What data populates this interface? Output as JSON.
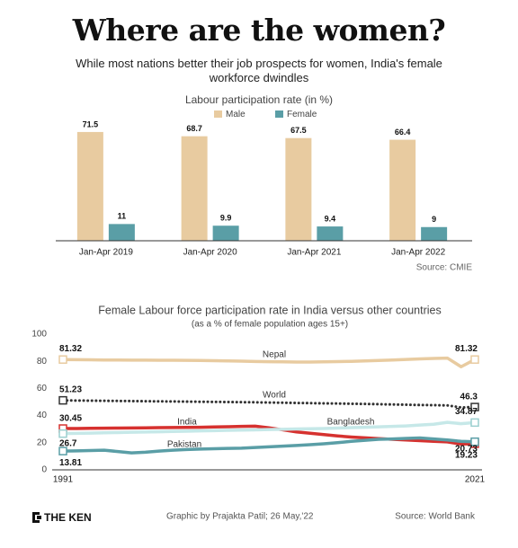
{
  "header": {
    "title": "Where are the women?",
    "subtitle": "While most nations better their job prospects for women, India's female workforce dwindles"
  },
  "chart_data": [
    {
      "type": "bar",
      "title": "Labour participation rate (in %)",
      "categories": [
        "Jan-Apr 2019",
        "Jan-Apr 2020",
        "Jan-Apr 2021",
        "Jan-Apr 2022"
      ],
      "series": [
        {
          "name": "Male",
          "color": "#e8cba0",
          "values": [
            71.5,
            68.7,
            67.5,
            66.4
          ]
        },
        {
          "name": "Female",
          "color": "#5a9ea6",
          "values": [
            11,
            9.9,
            9.4,
            9
          ]
        }
      ],
      "ylim": [
        0,
        75
      ],
      "source": "Source: CMIE"
    },
    {
      "type": "line",
      "title": "Female Labour force participation rate in India versus other countries",
      "subtitle": "(as a % of female population ages 15+)",
      "x": [
        1991,
        1992,
        1993,
        1994,
        1995,
        1996,
        1997,
        1998,
        1999,
        2000,
        2001,
        2002,
        2003,
        2004,
        2005,
        2006,
        2007,
        2008,
        2009,
        2010,
        2011,
        2012,
        2013,
        2014,
        2015,
        2016,
        2017,
        2018,
        2019,
        2020,
        2021
      ],
      "xlim": [
        1991,
        2021
      ],
      "xticks": [
        1991,
        2021
      ],
      "ylim": [
        0,
        100
      ],
      "yticks": [
        0,
        20,
        40,
        60,
        80,
        100
      ],
      "series": [
        {
          "name": "Nepal",
          "color": "#e8cba0",
          "line_style": "solid",
          "values": [
            81.32,
            81.2,
            81.1,
            81.0,
            81.0,
            80.9,
            80.9,
            80.8,
            80.8,
            80.7,
            80.6,
            80.5,
            80.3,
            80.1,
            79.9,
            79.7,
            79.6,
            79.5,
            79.5,
            79.6,
            79.8,
            80.0,
            80.3,
            80.6,
            81.0,
            81.4,
            81.8,
            82.1,
            82.4,
            76.0,
            81.32
          ]
        },
        {
          "name": "World",
          "color": "#333333",
          "line_style": "dotted",
          "values": [
            51.23,
            51.1,
            51.0,
            50.9,
            50.8,
            50.7,
            50.6,
            50.5,
            50.4,
            50.3,
            50.2,
            50.1,
            50.0,
            49.9,
            49.8,
            49.6,
            49.5,
            49.3,
            49.2,
            49.0,
            48.9,
            48.7,
            48.6,
            48.4,
            48.2,
            48.0,
            47.8,
            47.7,
            47.5,
            46.0,
            46.3
          ]
        },
        {
          "name": "India",
          "color": "#d6312f",
          "line_style": "solid",
          "values": [
            30.45,
            30.5,
            30.6,
            30.7,
            30.8,
            30.9,
            31.0,
            31.1,
            31.2,
            31.3,
            31.4,
            31.6,
            31.8,
            32.0,
            32.2,
            31.0,
            29.5,
            28.0,
            27.0,
            26.0,
            25.0,
            24.2,
            23.6,
            23.0,
            22.5,
            22.0,
            21.5,
            21.0,
            20.6,
            19.0,
            19.23
          ]
        },
        {
          "name": "Bangladesh",
          "color": "#c6e8e8",
          "line_style": "solid",
          "values": [
            26.7,
            26.9,
            27.1,
            27.3,
            27.5,
            27.7,
            27.9,
            28.1,
            28.3,
            28.5,
            28.7,
            28.9,
            29.1,
            29.3,
            29.5,
            29.7,
            29.9,
            30.1,
            30.3,
            30.5,
            30.8,
            31.1,
            31.4,
            31.7,
            32.0,
            32.4,
            33.0,
            33.6,
            35.0,
            34.0,
            34.87
          ]
        },
        {
          "name": "Pakistan",
          "color": "#5a9ea6",
          "line_style": "solid",
          "values": [
            13.81,
            14.0,
            14.2,
            14.5,
            13.5,
            12.5,
            13.0,
            13.8,
            14.5,
            15.0,
            15.3,
            15.6,
            15.8,
            16.0,
            16.5,
            17.0,
            17.5,
            18.0,
            18.5,
            19.2,
            20.0,
            21.0,
            21.8,
            22.5,
            22.8,
            23.2,
            23.5,
            22.8,
            22.0,
            21.0,
            20.73
          ]
        }
      ],
      "grid": false
    }
  ],
  "footer": {
    "brand": "THE KEN",
    "credit": "Graphic by Prajakta Patil; 26 May,'22",
    "source": "Source: World Bank"
  }
}
